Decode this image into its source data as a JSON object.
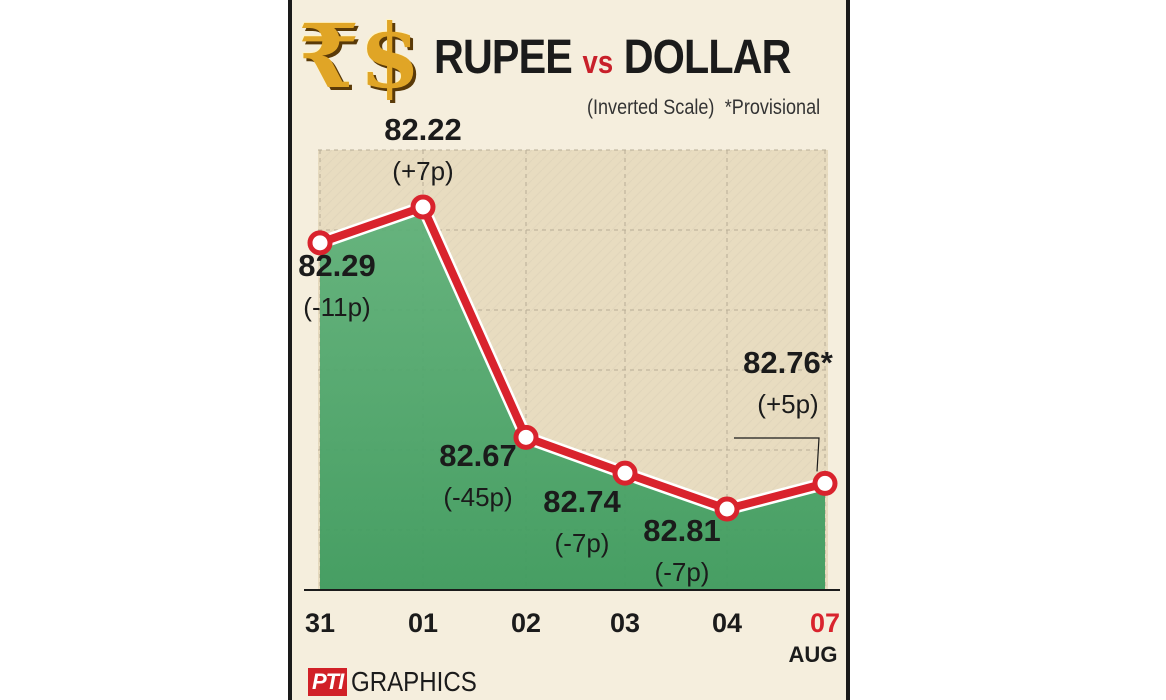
{
  "header": {
    "symbols": [
      "₹",
      "$"
    ],
    "title_left": "RUPEE",
    "title_vs": "vs",
    "title_right": "DOLLAR",
    "note_scale": "(Inverted Scale)",
    "note_provisional": "*Provisional"
  },
  "footer": {
    "logo": "PTI",
    "label": "GRAPHICS"
  },
  "colors": {
    "line": "#d9232d",
    "fill_green": "#4fa56c",
    "title": "#1b1b1b",
    "vs": "#c8202a",
    "gold": "#e0a526",
    "last_tick": "#d9232d"
  },
  "chart_data": {
    "type": "line",
    "title": "RUPEE vs DOLLAR",
    "subtitle": "(Inverted Scale)  *Provisional",
    "x_ticks": [
      "31",
      "01",
      "02",
      "03",
      "04",
      "07"
    ],
    "x_sublabel": "AUG",
    "y_inverted": true,
    "values": [
      82.29,
      82.22,
      82.67,
      82.74,
      82.81,
      82.76
    ],
    "value_labels": [
      "82.29",
      "82.22",
      "82.67",
      "82.74",
      "82.81",
      "82.76*"
    ],
    "change_labels": [
      "(-11p)",
      "(+7p)",
      "(-45p)",
      "(-7p)",
      "(-7p)",
      "(+5p)"
    ],
    "label_position": [
      "below",
      "above",
      "below",
      "below",
      "below",
      "above"
    ],
    "grid": true
  }
}
